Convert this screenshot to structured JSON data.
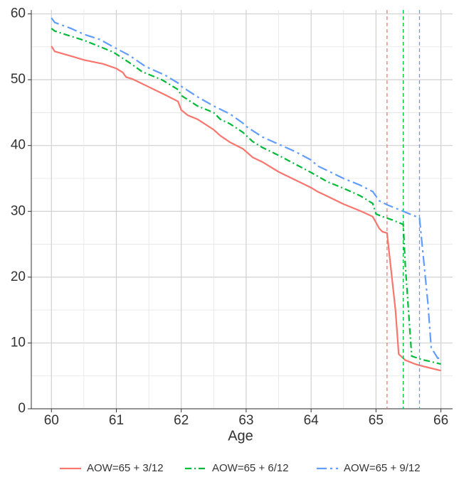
{
  "chart_data": {
    "type": "line",
    "x_label": "Age",
    "xlim": [
      59.69,
      66.18
    ],
    "ylim": [
      0,
      60.6
    ],
    "xticks": [
      60,
      61,
      62,
      63,
      64,
      65,
      66
    ],
    "yticks": [
      0,
      10,
      20,
      30,
      40,
      50,
      60
    ],
    "grid": true,
    "legend": "bottom",
    "series": [
      {
        "name": "AOW=65 + 3/12",
        "color": "#f8766d",
        "reference_x": 65.17,
        "x": [
          60,
          60.05,
          60.3,
          60.5,
          60.8,
          61,
          61.1,
          61.15,
          61.25,
          61.5,
          61.75,
          61.95,
          62,
          62.1,
          62.25,
          62.5,
          62.6,
          62.75,
          62.95,
          63.1,
          63.25,
          63.5,
          63.75,
          64,
          64.1,
          64.25,
          64.5,
          64.75,
          64.95,
          65.05,
          65.1,
          65.17,
          65.3,
          65.35,
          65.45,
          65.6,
          65.75,
          66
        ],
        "values": [
          55.1,
          54.3,
          53.6,
          53,
          52.4,
          51.7,
          51.1,
          50.4,
          50.1,
          48.9,
          47.7,
          46.7,
          45.4,
          44.6,
          44,
          42.4,
          41.5,
          40.5,
          39.5,
          38.2,
          37.5,
          36,
          34.8,
          33.6,
          33,
          32.3,
          31.1,
          30.1,
          29.2,
          27.4,
          26.9,
          26.7,
          15,
          8.3,
          7.4,
          6.8,
          6.4,
          5.8
        ]
      },
      {
        "name": "AOW=65 + 6/12",
        "color": "#00ba38",
        "reference_x": 65.42,
        "x": [
          60,
          60.05,
          60.3,
          60.5,
          60.75,
          60.95,
          61.2,
          61.4,
          61.7,
          61.95,
          62,
          62.25,
          62.5,
          62.6,
          62.75,
          62.95,
          63.1,
          63.25,
          63.5,
          63.75,
          64,
          64.25,
          64.5,
          64.75,
          64.95,
          65,
          65.1,
          65.25,
          65.42,
          65.45,
          65.55,
          65.7,
          66
        ],
        "values": [
          57.8,
          57.4,
          56.6,
          56,
          55,
          54.2,
          52.6,
          51.2,
          50,
          48.5,
          47.6,
          46,
          45,
          44,
          43.3,
          42,
          40.6,
          39.7,
          38.5,
          37.2,
          35.9,
          34.5,
          33.5,
          32.4,
          31.2,
          29.6,
          29.2,
          28.7,
          28,
          22,
          8,
          7.5,
          6.8
        ]
      },
      {
        "name": "AOW=65 + 9/12",
        "color": "#619cff",
        "reference_x": 65.67,
        "x": [
          60,
          60.05,
          60.3,
          60.5,
          60.75,
          60.95,
          61.2,
          61.45,
          61.75,
          61.95,
          62,
          62.25,
          62.5,
          62.75,
          62.95,
          63,
          63.25,
          63.5,
          63.75,
          64,
          64.1,
          64.25,
          64.5,
          64.75,
          64.95,
          65.05,
          65.17,
          65.42,
          65.67,
          65.8,
          65.85,
          65.95,
          66
        ],
        "values": [
          59.4,
          58.7,
          57.8,
          56.9,
          56.1,
          55,
          53.7,
          52,
          50.7,
          49.5,
          49,
          47.4,
          46,
          44.8,
          43.4,
          42.9,
          41.3,
          40.2,
          39.1,
          37.8,
          36.9,
          36.2,
          35,
          34,
          33,
          31.6,
          31,
          30,
          29,
          16,
          9.3,
          7.7,
          7.7
        ]
      }
    ]
  }
}
